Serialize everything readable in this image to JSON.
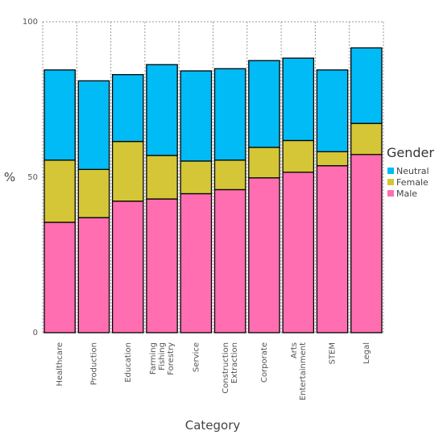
{
  "chart_data": {
    "type": "bar",
    "stacked": true,
    "xlabel": "Category",
    "ylabel": "%",
    "ylim": [
      0,
      100
    ],
    "yticks": [
      0,
      50,
      100
    ],
    "grid": true,
    "legend": {
      "title": "Gender",
      "placement": "right",
      "entries": [
        "Neutral",
        "Female",
        "Male"
      ]
    },
    "categories": [
      [
        "Healthcare"
      ],
      [
        "Production"
      ],
      [
        "Education"
      ],
      [
        "Farming",
        "Fishing",
        "Forestry"
      ],
      [
        "Service"
      ],
      [
        "Construction",
        "Extraction"
      ],
      [
        "Corporate"
      ],
      [
        "Arts",
        "Entertainment"
      ],
      [
        "STEM"
      ],
      [
        "Legal"
      ]
    ],
    "series": [
      {
        "name": "Male",
        "color": "#ff6eb0",
        "values": [
          35.5,
          37,
          42.3,
          43,
          44.7,
          46,
          49.8,
          51.6,
          53.7,
          57.3
        ]
      },
      {
        "name": "Female",
        "color": "#d4c636",
        "values": [
          20,
          15.5,
          19.2,
          14,
          10.5,
          9.5,
          9.8,
          10.2,
          4.5,
          10
        ]
      },
      {
        "name": "Neutral",
        "color": "#00bbf5",
        "values": [
          29,
          28.5,
          21.5,
          29.2,
          29,
          29.4,
          27.9,
          26.5,
          26.3,
          24.3
        ]
      }
    ]
  }
}
